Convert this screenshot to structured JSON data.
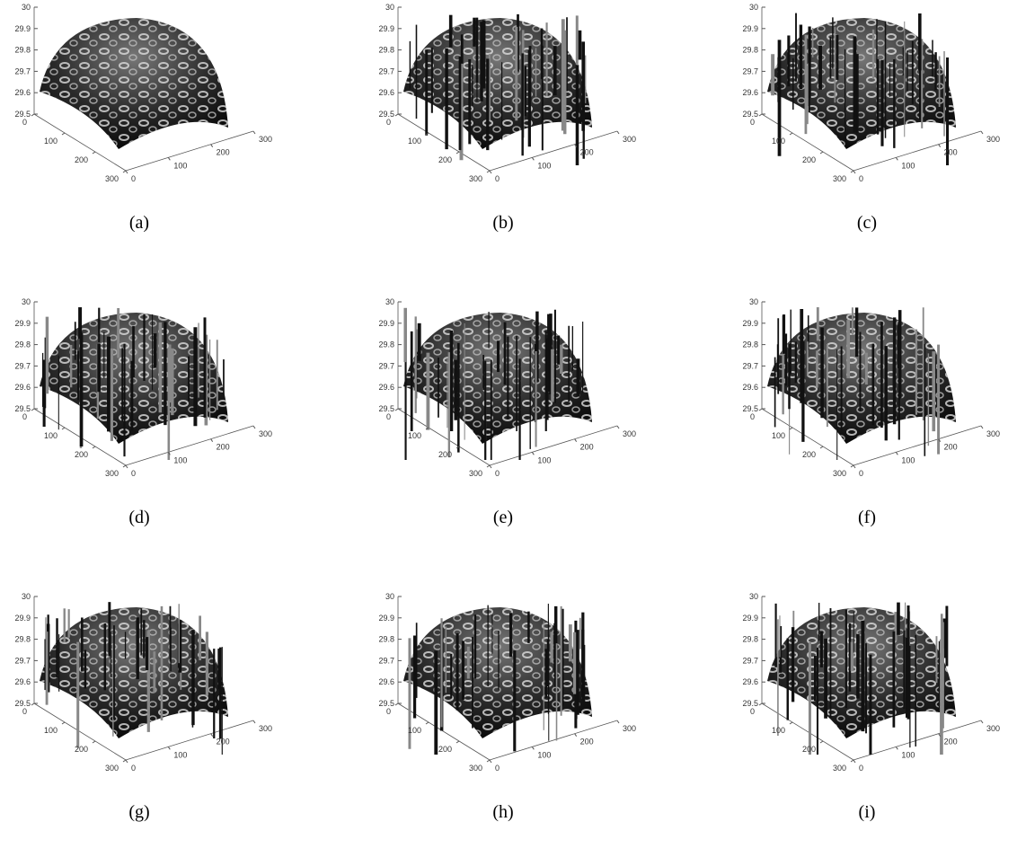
{
  "axes": {
    "zticks": [
      29.5,
      29.6,
      29.7,
      29.8,
      29.9,
      30
    ],
    "xticks": [
      0,
      100,
      200,
      300
    ],
    "yticks": [
      0,
      100,
      200,
      300
    ]
  },
  "panels": [
    {
      "caption": "(a)"
    },
    {
      "caption": "(b)"
    },
    {
      "caption": "(c)"
    },
    {
      "caption": "(d)"
    },
    {
      "caption": "(e)"
    },
    {
      "caption": "(f)"
    },
    {
      "caption": "(g)"
    },
    {
      "caption": "(h)"
    },
    {
      "caption": "(i)"
    }
  ]
}
